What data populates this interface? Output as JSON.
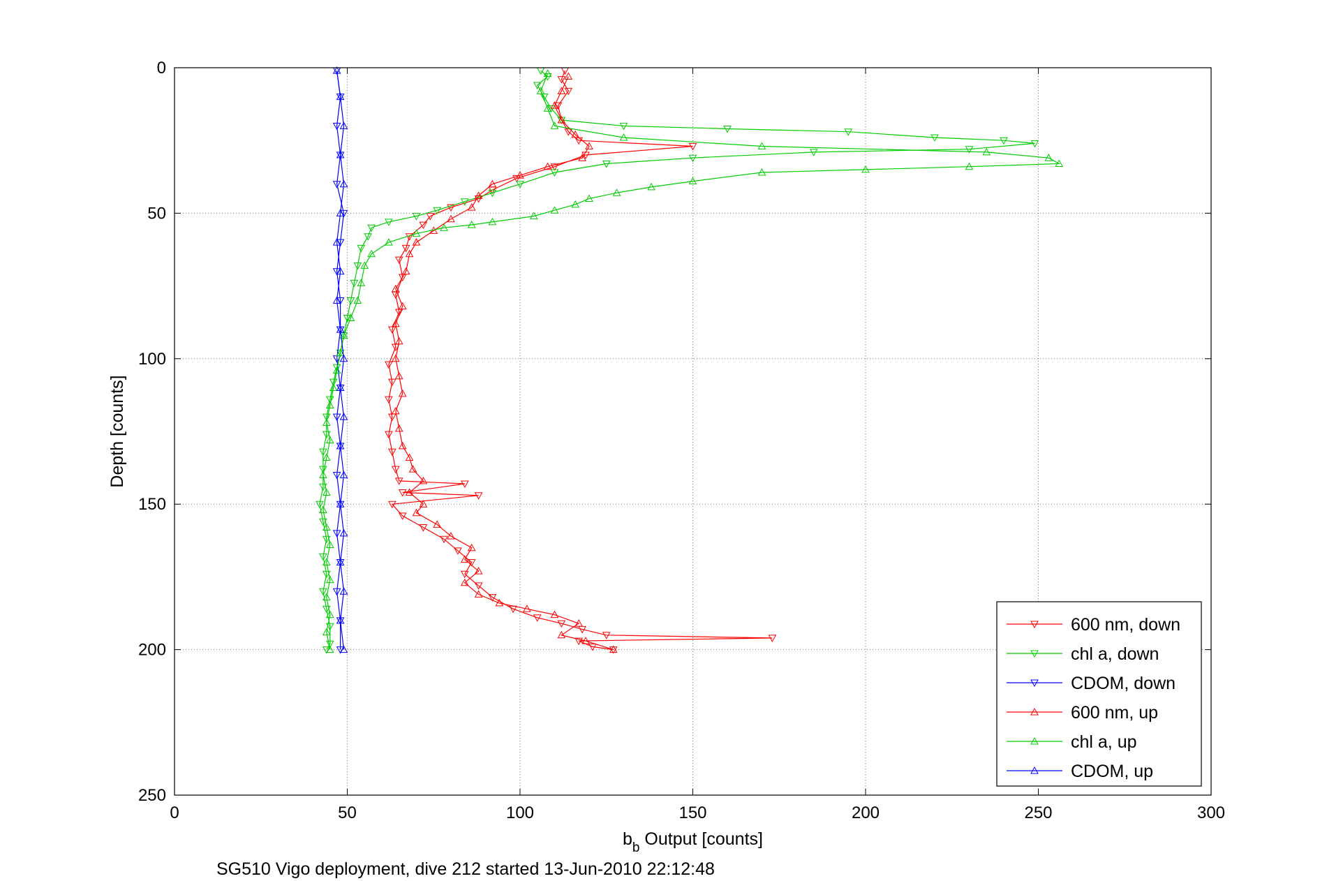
{
  "chart_data": {
    "type": "line",
    "xlabel": {
      "base": "b",
      "sub": "b",
      "rest": " Output [counts]"
    },
    "ylabel": "Depth [counts]",
    "caption": "SG510 Vigo deployment, dive 212 started 13-Jun-2010 22:12:48",
    "xlim": [
      0,
      300
    ],
    "ylim": [
      0,
      250
    ],
    "y_reversed": true,
    "xticks": [
      "0",
      "50",
      "100",
      "150",
      "200",
      "250",
      "300"
    ],
    "yticks": [
      "0",
      "50",
      "100",
      "150",
      "200",
      "250"
    ],
    "grid": true,
    "legend_position": "bottom-right",
    "series": [
      {
        "name": "600 nm, down",
        "color": "#ff0000",
        "marker": "triangle-down",
        "points": [
          [
            113,
            1
          ],
          [
            112,
            4
          ],
          [
            114,
            8
          ],
          [
            111,
            13
          ],
          [
            112,
            18
          ],
          [
            114,
            22
          ],
          [
            117,
            25
          ],
          [
            150,
            27
          ],
          [
            119,
            30
          ],
          [
            110,
            34
          ],
          [
            99,
            38
          ],
          [
            92,
            42
          ],
          [
            88,
            45
          ],
          [
            80,
            48
          ],
          [
            74,
            51
          ],
          [
            72,
            54
          ],
          [
            68,
            58
          ],
          [
            67,
            62
          ],
          [
            65,
            66
          ],
          [
            66,
            72
          ],
          [
            64,
            78
          ],
          [
            65,
            84
          ],
          [
            63,
            90
          ],
          [
            64,
            96
          ],
          [
            62,
            102
          ],
          [
            63,
            108
          ],
          [
            62,
            114
          ],
          [
            63,
            120
          ],
          [
            62,
            126
          ],
          [
            63,
            132
          ],
          [
            64,
            138
          ],
          [
            65,
            142
          ],
          [
            84,
            143
          ],
          [
            66,
            146
          ],
          [
            88,
            147
          ],
          [
            63,
            150
          ],
          [
            66,
            154
          ],
          [
            72,
            158
          ],
          [
            78,
            162
          ],
          [
            82,
            166
          ],
          [
            86,
            170
          ],
          [
            84,
            174
          ],
          [
            88,
            178
          ],
          [
            92,
            182
          ],
          [
            98,
            186
          ],
          [
            105,
            189
          ],
          [
            112,
            191
          ],
          [
            118,
            193
          ],
          [
            125,
            195
          ],
          [
            173,
            196
          ],
          [
            117,
            197
          ],
          [
            121,
            199
          ],
          [
            127,
            200
          ]
        ]
      },
      {
        "name": "chl a, down",
        "color": "#00cc00",
        "marker": "triangle-down",
        "points": [
          [
            106,
            1
          ],
          [
            108,
            3
          ],
          [
            105,
            6
          ],
          [
            107,
            10
          ],
          [
            109,
            14
          ],
          [
            112,
            18
          ],
          [
            130,
            20
          ],
          [
            160,
            21
          ],
          [
            195,
            22
          ],
          [
            220,
            24
          ],
          [
            240,
            25
          ],
          [
            249,
            26
          ],
          [
            230,
            28
          ],
          [
            185,
            29
          ],
          [
            150,
            31
          ],
          [
            125,
            33
          ],
          [
            110,
            36
          ],
          [
            100,
            40
          ],
          [
            92,
            43
          ],
          [
            84,
            46
          ],
          [
            76,
            49
          ],
          [
            70,
            51
          ],
          [
            62,
            53
          ],
          [
            57,
            55
          ],
          [
            56,
            58
          ],
          [
            54,
            62
          ],
          [
            53,
            68
          ],
          [
            52,
            74
          ],
          [
            51,
            80
          ],
          [
            50,
            86
          ],
          [
            49,
            92
          ],
          [
            48,
            98
          ],
          [
            47,
            103
          ],
          [
            46,
            108
          ],
          [
            45,
            114
          ],
          [
            44,
            120
          ],
          [
            44,
            126
          ],
          [
            43,
            132
          ],
          [
            43,
            138
          ],
          [
            43,
            144
          ],
          [
            42,
            150
          ],
          [
            43,
            156
          ],
          [
            44,
            162
          ],
          [
            43,
            168
          ],
          [
            44,
            174
          ],
          [
            43,
            180
          ],
          [
            44,
            186
          ],
          [
            45,
            192
          ],
          [
            45,
            198
          ],
          [
            44,
            200
          ]
        ]
      },
      {
        "name": "CDOM, down",
        "color": "#0000ff",
        "marker": "triangle-down",
        "points": [
          [
            47,
            1
          ],
          [
            48,
            10
          ],
          [
            47,
            20
          ],
          [
            48,
            30
          ],
          [
            47,
            40
          ],
          [
            49,
            50
          ],
          [
            48,
            60
          ],
          [
            47,
            70
          ],
          [
            48,
            80
          ],
          [
            48,
            90
          ],
          [
            47,
            100
          ],
          [
            48,
            110
          ],
          [
            47,
            120
          ],
          [
            48,
            130
          ],
          [
            47,
            140
          ],
          [
            48,
            150
          ],
          [
            47,
            160
          ],
          [
            48,
            170
          ],
          [
            47,
            180
          ],
          [
            48,
            190
          ],
          [
            48,
            200
          ]
        ]
      },
      {
        "name": "600 nm, up",
        "color": "#ff0000",
        "marker": "triangle-up",
        "points": [
          [
            127,
            200
          ],
          [
            119,
            197
          ],
          [
            112,
            195
          ],
          [
            117,
            191
          ],
          [
            110,
            188
          ],
          [
            102,
            186
          ],
          [
            94,
            184
          ],
          [
            88,
            181
          ],
          [
            84,
            177
          ],
          [
            88,
            173
          ],
          [
            84,
            169
          ],
          [
            86,
            165
          ],
          [
            80,
            161
          ],
          [
            76,
            157
          ],
          [
            70,
            153
          ],
          [
            72,
            150
          ],
          [
            68,
            146
          ],
          [
            72,
            142
          ],
          [
            69,
            138
          ],
          [
            68,
            134
          ],
          [
            66,
            130
          ],
          [
            65,
            124
          ],
          [
            64,
            118
          ],
          [
            66,
            112
          ],
          [
            65,
            106
          ],
          [
            64,
            100
          ],
          [
            65,
            94
          ],
          [
            64,
            88
          ],
          [
            66,
            82
          ],
          [
            64,
            76
          ],
          [
            67,
            70
          ],
          [
            68,
            64
          ],
          [
            70,
            60
          ],
          [
            75,
            56
          ],
          [
            80,
            52
          ],
          [
            86,
            48
          ],
          [
            88,
            44
          ],
          [
            92,
            40
          ],
          [
            100,
            37
          ],
          [
            108,
            34
          ],
          [
            118,
            31
          ],
          [
            120,
            27
          ],
          [
            116,
            23
          ],
          [
            112,
            18
          ],
          [
            110,
            13
          ],
          [
            112,
            8
          ],
          [
            114,
            3
          ]
        ]
      },
      {
        "name": "chl a, up",
        "color": "#00cc00",
        "marker": "triangle-up",
        "points": [
          [
            45,
            200
          ],
          [
            44,
            194
          ],
          [
            45,
            188
          ],
          [
            44,
            182
          ],
          [
            45,
            176
          ],
          [
            44,
            170
          ],
          [
            45,
            164
          ],
          [
            44,
            158
          ],
          [
            43,
            152
          ],
          [
            44,
            146
          ],
          [
            43,
            140
          ],
          [
            44,
            134
          ],
          [
            45,
            128
          ],
          [
            44,
            122
          ],
          [
            45,
            116
          ],
          [
            46,
            110
          ],
          [
            47,
            104
          ],
          [
            48,
            98
          ],
          [
            49,
            92
          ],
          [
            51,
            86
          ],
          [
            53,
            80
          ],
          [
            54,
            74
          ],
          [
            55,
            68
          ],
          [
            57,
            64
          ],
          [
            62,
            60
          ],
          [
            70,
            57
          ],
          [
            78,
            55
          ],
          [
            86,
            54
          ],
          [
            92,
            53
          ],
          [
            104,
            51
          ],
          [
            110,
            49
          ],
          [
            116,
            47
          ],
          [
            120,
            45
          ],
          [
            128,
            43
          ],
          [
            138,
            41
          ],
          [
            150,
            39
          ],
          [
            170,
            36
          ],
          [
            200,
            35
          ],
          [
            230,
            34
          ],
          [
            256,
            33
          ],
          [
            253,
            31
          ],
          [
            235,
            29
          ],
          [
            170,
            27
          ],
          [
            130,
            24
          ],
          [
            110,
            20
          ],
          [
            108,
            14
          ],
          [
            106,
            8
          ],
          [
            108,
            2
          ]
        ]
      },
      {
        "name": "CDOM, up",
        "color": "#0000ff",
        "marker": "triangle-up",
        "points": [
          [
            49,
            200
          ],
          [
            48,
            190
          ],
          [
            49,
            180
          ],
          [
            48,
            170
          ],
          [
            49,
            160
          ],
          [
            48,
            150
          ],
          [
            49,
            140
          ],
          [
            48,
            130
          ],
          [
            49,
            120
          ],
          [
            48,
            110
          ],
          [
            49,
            100
          ],
          [
            48,
            90
          ],
          [
            47,
            80
          ],
          [
            48,
            70
          ],
          [
            47,
            60
          ],
          [
            48,
            50
          ],
          [
            49,
            40
          ],
          [
            48,
            30
          ],
          [
            49,
            20
          ],
          [
            48,
            10
          ],
          [
            47,
            1
          ]
        ]
      }
    ]
  }
}
